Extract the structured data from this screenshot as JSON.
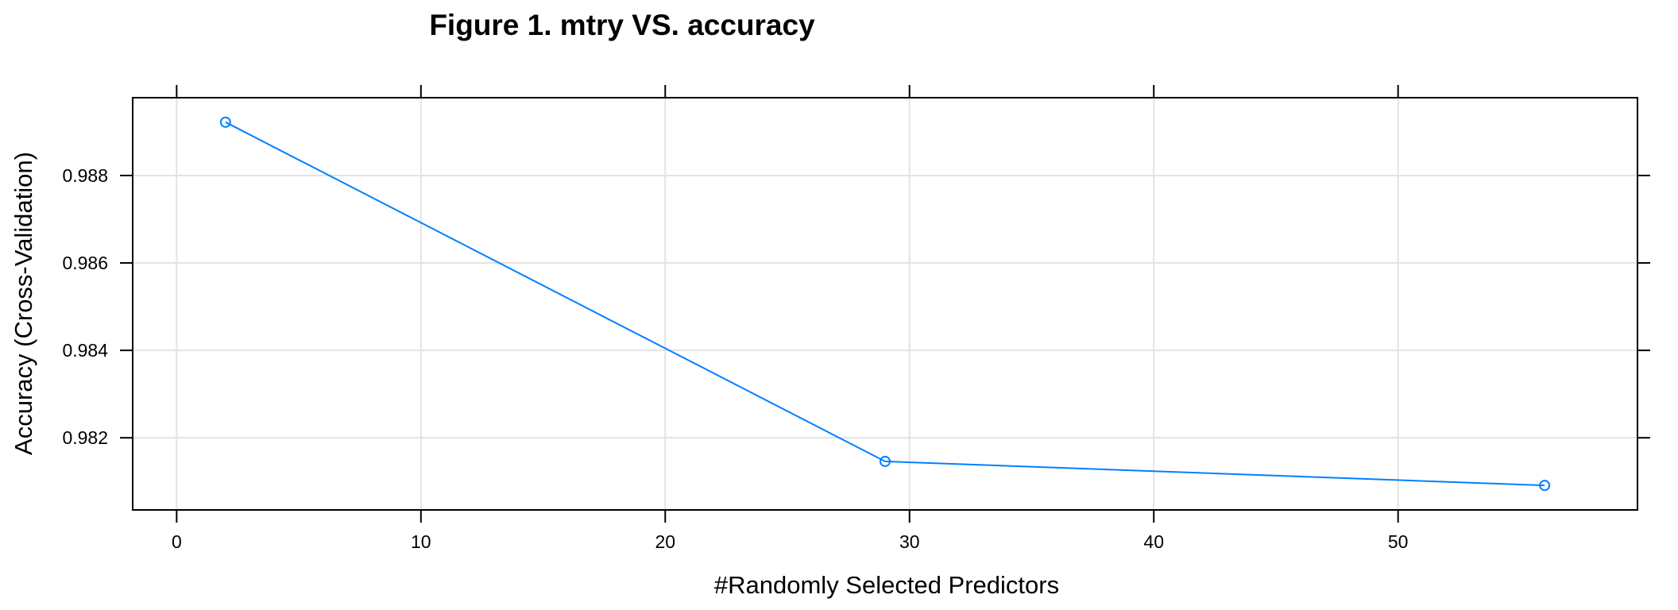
{
  "chart_data": {
    "type": "line",
    "title": "Figure 1. mtry VS. accuracy",
    "xlabel": "#Randomly Selected Predictors",
    "ylabel": "Accuracy (Cross-Validation)",
    "x": [
      2,
      29,
      56
    ],
    "series": [
      {
        "values": [
          0.98922,
          0.98146,
          0.98091
        ],
        "color": "#0080ff"
      }
    ],
    "xlim": [
      -1.8,
      59.8
    ],
    "ylim": [
      0.98035,
      0.98978
    ],
    "xticks": [
      0,
      10,
      20,
      30,
      40,
      50
    ],
    "xtick_labels": [
      "0",
      "10",
      "20",
      "30",
      "40",
      "50"
    ],
    "yticks": [
      0.982,
      0.984,
      0.986,
      0.988
    ],
    "ytick_labels": [
      "0.982",
      "0.984",
      "0.986",
      "0.988"
    ],
    "grid": true,
    "marker": "open-circle"
  }
}
